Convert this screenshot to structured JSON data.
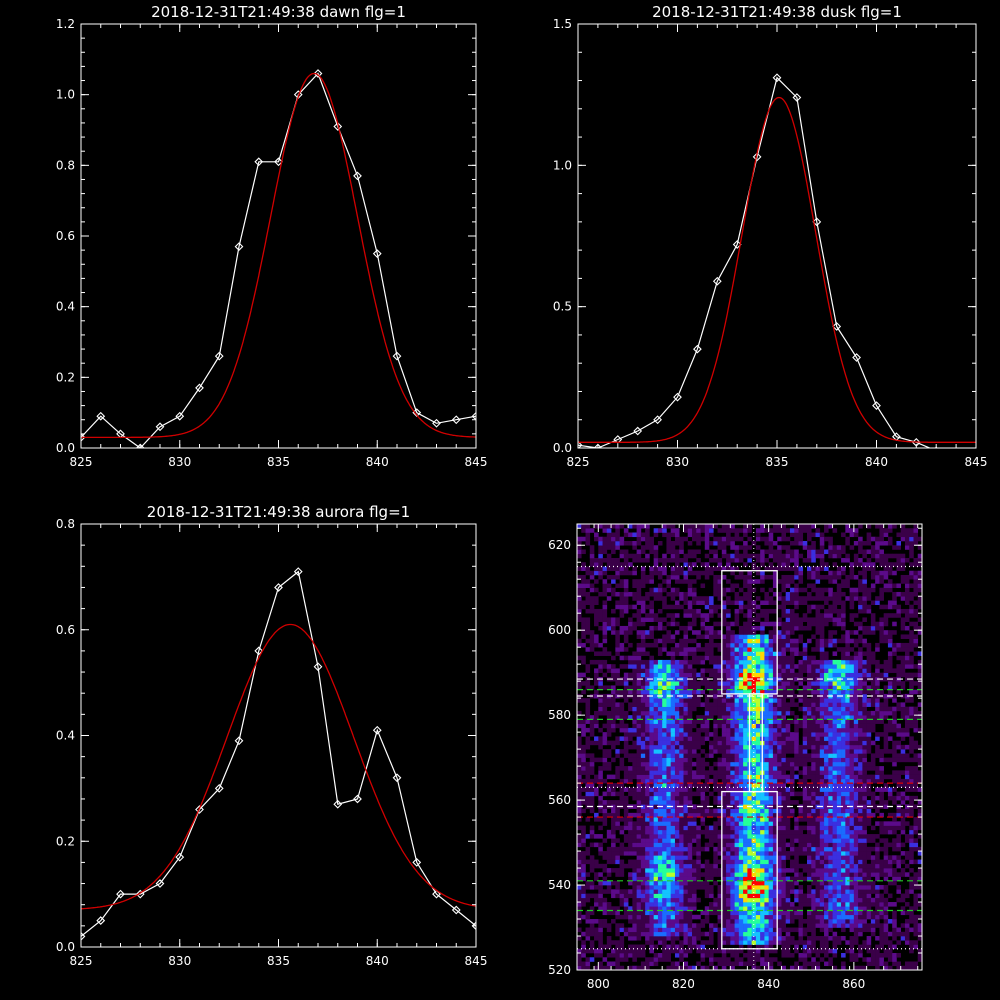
{
  "chart_data": [
    {
      "type": "line",
      "panel": "top-left",
      "title": "2018-12-31T21:49:38 dawn flg=1",
      "xlim": [
        825,
        845
      ],
      "ylim": [
        0,
        1.2
      ],
      "xticks": [
        "825",
        "830",
        "835",
        "840",
        "845"
      ],
      "yticks": [
        "0.0",
        "0.2",
        "0.4",
        "0.6",
        "0.8",
        "1.0",
        "1.2"
      ],
      "xtick_values": [
        825,
        830,
        835,
        840,
        845
      ],
      "ytick_values": [
        0,
        0.2,
        0.4,
        0.6,
        0.8,
        1.0,
        1.2
      ],
      "series": [
        {
          "color": "#ffffff",
          "marker": "diamond",
          "x": [
            825,
            826,
            827,
            828,
            829,
            830,
            831,
            832,
            833,
            834,
            835,
            836,
            837,
            838,
            839,
            840,
            841,
            842,
            843,
            844,
            845
          ],
          "y": [
            0.03,
            0.09,
            0.04,
            0.0,
            0.06,
            0.09,
            0.17,
            0.26,
            0.57,
            0.81,
            0.81,
            1.0,
            1.06,
            0.91,
            0.77,
            0.55,
            0.26,
            0.1,
            0.07,
            0.08,
            0.09
          ]
        },
        {
          "color": "#d00000",
          "model": "gaussian",
          "amplitude": 1.03,
          "center": 836.8,
          "sigma": 2.2,
          "baseline": 0.03
        }
      ]
    },
    {
      "type": "line",
      "panel": "top-right",
      "title": "2018-12-31T21:49:38 dusk flg=1",
      "xlim": [
        825,
        845
      ],
      "ylim": [
        0,
        1.5
      ],
      "xticks": [
        "825",
        "830",
        "835",
        "840",
        "845"
      ],
      "yticks": [
        "0.0",
        "0.5",
        "1.0",
        "1.5"
      ],
      "xtick_values": [
        825,
        830,
        835,
        840,
        845
      ],
      "ytick_values": [
        0,
        0.5,
        1.0,
        1.5
      ],
      "series": [
        {
          "color": "#ffffff",
          "marker": "diamond",
          "x": [
            825,
            826,
            827,
            828,
            829,
            830,
            831,
            832,
            833,
            834,
            835,
            836,
            837,
            838,
            839,
            840,
            841,
            842,
            843,
            844,
            845
          ],
          "y": [
            0.01,
            0.0,
            0.03,
            0.06,
            0.1,
            0.18,
            0.35,
            0.59,
            0.72,
            1.03,
            1.31,
            1.24,
            0.8,
            0.43,
            0.32,
            0.15,
            0.04,
            0.02,
            -0.01,
            -0.02,
            -0.03
          ]
        },
        {
          "color": "#d00000",
          "model": "gaussian",
          "amplitude": 1.22,
          "center": 835.1,
          "sigma": 1.85,
          "baseline": 0.02
        }
      ]
    },
    {
      "type": "line",
      "panel": "bottom-left",
      "title": "2018-12-31T21:49:38 aurora flg=1",
      "xlim": [
        825,
        845
      ],
      "ylim": [
        0,
        0.8
      ],
      "xticks": [
        "825",
        "830",
        "835",
        "840",
        "845"
      ],
      "yticks": [
        "0.0",
        "0.2",
        "0.4",
        "0.6",
        "0.8"
      ],
      "xtick_values": [
        825,
        830,
        835,
        840,
        845
      ],
      "ytick_values": [
        0,
        0.2,
        0.4,
        0.6,
        0.8
      ],
      "series": [
        {
          "color": "#ffffff",
          "marker": "diamond",
          "x": [
            825,
            826,
            827,
            828,
            829,
            830,
            831,
            832,
            833,
            834,
            835,
            836,
            837,
            838,
            839,
            840,
            841,
            842,
            843,
            844,
            845
          ],
          "y": [
            0.02,
            0.05,
            0.1,
            0.1,
            0.12,
            0.17,
            0.26,
            0.3,
            0.39,
            0.56,
            0.68,
            0.71,
            0.53,
            0.27,
            0.28,
            0.41,
            0.32,
            0.16,
            0.1,
            0.07,
            0.04
          ]
        },
        {
          "color": "#d00000",
          "model": "gaussian",
          "amplitude": 0.54,
          "center": 835.6,
          "sigma": 3.2,
          "baseline": 0.07
        }
      ]
    },
    {
      "type": "heatmap",
      "panel": "bottom-right",
      "title": "",
      "xlim": [
        795,
        876
      ],
      "ylim": [
        520,
        625
      ],
      "xticks": [
        "800",
        "820",
        "840",
        "860"
      ],
      "yticks": [
        "520",
        "540",
        "560",
        "580",
        "600",
        "620"
      ],
      "xtick_values": [
        800,
        820,
        840,
        860
      ],
      "ytick_values": [
        520,
        540,
        560,
        580,
        600,
        620
      ],
      "colormap": [
        "#000000",
        "#3a0048",
        "#5b0a8a",
        "#3b2fe0",
        "#1a6cff",
        "#14c4ff",
        "#25ff9a",
        "#b8ff2a",
        "#ffd500",
        "#ff0000"
      ],
      "emission_columns": [
        {
          "x": 815,
          "y_range": [
            528,
            592
          ],
          "peak_y": [
            586,
            542
          ]
        },
        {
          "x": 836,
          "y_range": [
            526,
            598
          ],
          "peak_y": [
            587,
            539
          ]
        },
        {
          "x": 856,
          "y_range": [
            530,
            592
          ],
          "peak_y": [
            589
          ]
        }
      ],
      "boxes": [
        {
          "x": [
            829,
            842
          ],
          "y": [
            585,
            614
          ]
        },
        {
          "x": [
            829,
            842
          ],
          "y": [
            525,
            562
          ]
        },
        {
          "x": [
            835.5,
            838.5
          ],
          "y": [
            562,
            585
          ]
        }
      ],
      "white_dashed_y": [
        588.5,
        584.5,
        558.5
      ],
      "green_dashed_y": [
        586,
        579,
        541,
        534
      ],
      "red_dashed_y": [
        564,
        556
      ],
      "white_dotted_y": [
        615,
        563,
        525
      ],
      "white_dotted_x": [
        836.5
      ]
    }
  ]
}
